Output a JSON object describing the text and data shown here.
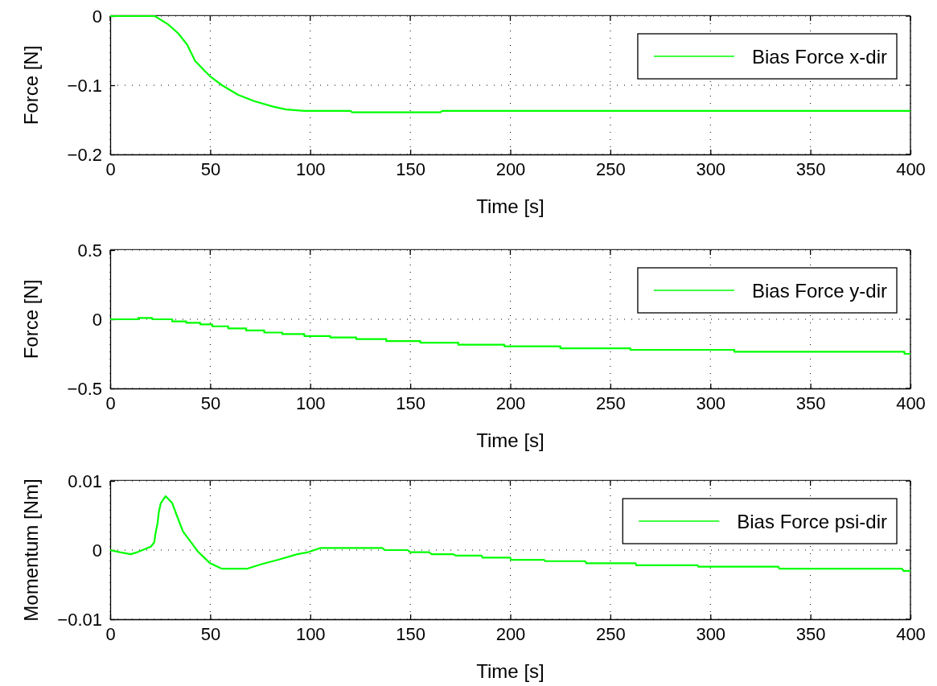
{
  "chart_data": [
    {
      "type": "line",
      "xlabel": "Time [s]",
      "ylabel": "Force [N]",
      "xlim": [
        0,
        400
      ],
      "xticks": [
        0,
        50,
        100,
        150,
        200,
        250,
        300,
        350,
        400
      ],
      "ylim": [
        -0.2,
        0
      ],
      "yticks": [
        -0.2,
        -0.1,
        0
      ],
      "grid": true,
      "legend": "top right",
      "line_style": "solid",
      "marker": "none",
      "series": [
        {
          "name": "Bias Force x-dir",
          "color": "#00ff00",
          "x": [
            0,
            22.3,
            29,
            34,
            38.4,
            42.5,
            49.9,
            55.9,
            64,
            72,
            81.5,
            88,
            97,
            120,
            121,
            165,
            166,
            400
          ],
          "values": [
            0,
            0,
            -0.012,
            -0.025,
            -0.041,
            -0.065,
            -0.087,
            -0.1,
            -0.114,
            -0.123,
            -0.131,
            -0.135,
            -0.137,
            -0.137,
            -0.139,
            -0.139,
            -0.137,
            -0.137
          ]
        }
      ]
    },
    {
      "type": "step",
      "xlabel": "Time [s]",
      "ylabel": "Force [N]",
      "xlim": [
        0,
        400
      ],
      "xticks": [
        0,
        50,
        100,
        150,
        200,
        250,
        300,
        350,
        400
      ],
      "ylim": [
        -0.5,
        0.5
      ],
      "yticks": [
        -0.5,
        0,
        0.5
      ],
      "grid": true,
      "legend": "top right",
      "line_style": "solid",
      "marker": "none",
      "series": [
        {
          "name": "Bias Force y-dir",
          "color": "#00ff00",
          "x": [
            0,
            14,
            21,
            31,
            38,
            45,
            51,
            59,
            68,
            77,
            86,
            97,
            110,
            123,
            138,
            155,
            174,
            197,
            225,
            260,
            312,
            397,
            400
          ],
          "values": [
            0,
            0.01,
            0,
            -0.015,
            -0.026,
            -0.037,
            -0.051,
            -0.066,
            -0.081,
            -0.096,
            -0.107,
            -0.121,
            -0.132,
            -0.143,
            -0.158,
            -0.169,
            -0.184,
            -0.195,
            -0.21,
            -0.221,
            -0.235,
            -0.25,
            -0.25
          ]
        }
      ]
    },
    {
      "type": "line",
      "xlabel": "Time [s]",
      "ylabel": "Momentum [Nm]",
      "xlim": [
        0,
        400
      ],
      "xticks": [
        0,
        50,
        100,
        150,
        200,
        250,
        300,
        350,
        400
      ],
      "ylim": [
        -0.01,
        0.01
      ],
      "yticks": [
        -0.01,
        0,
        0.01
      ],
      "grid": true,
      "legend": "top right",
      "line_style": "solid",
      "marker": "none",
      "series": [
        {
          "name": "Bias Force psi-dir",
          "color": "#00ff00",
          "x": [
            0,
            4.8,
            10.2,
            13.6,
            16.9,
            20.3,
            22,
            22.7,
            23.7,
            24.3,
            25.3,
            27.7,
            31,
            33.3,
            36.4,
            43.8,
            49.9,
            55.9,
            68.3,
            76,
            84,
            93.5,
            99,
            105,
            136,
            137.3,
            148.7,
            150,
            159.4,
            160.7,
            171.5,
            172.8,
            185.6,
            186.2,
            200,
            200.3,
            216.8,
            217.5,
            237.4,
            238,
            262.5,
            263,
            293.6,
            294,
            334,
            334.5,
            395.8,
            396.5,
            400
          ],
          "values": [
            0,
            -0.0003,
            -0.0006,
            -0.0003,
            0.0001,
            0.0005,
            0.0011,
            0.0025,
            0.0039,
            0.0055,
            0.0068,
            0.0078,
            0.0068,
            0.005,
            0.0027,
            -0.0002,
            -0.0019,
            -0.0027,
            -0.0027,
            -0.002,
            -0.0014,
            -0.0006,
            -0.0003,
            0.0003,
            0.0003,
            0,
            0,
            -0.0003,
            -0.0003,
            -0.0006,
            -0.0006,
            -0.0008,
            -0.0008,
            -0.0011,
            -0.0011,
            -0.0014,
            -0.0014,
            -0.0016,
            -0.0016,
            -0.0019,
            -0.0019,
            -0.0022,
            -0.0022,
            -0.0024,
            -0.0024,
            -0.0027,
            -0.0027,
            -0.003,
            -0.003
          ]
        }
      ]
    }
  ]
}
